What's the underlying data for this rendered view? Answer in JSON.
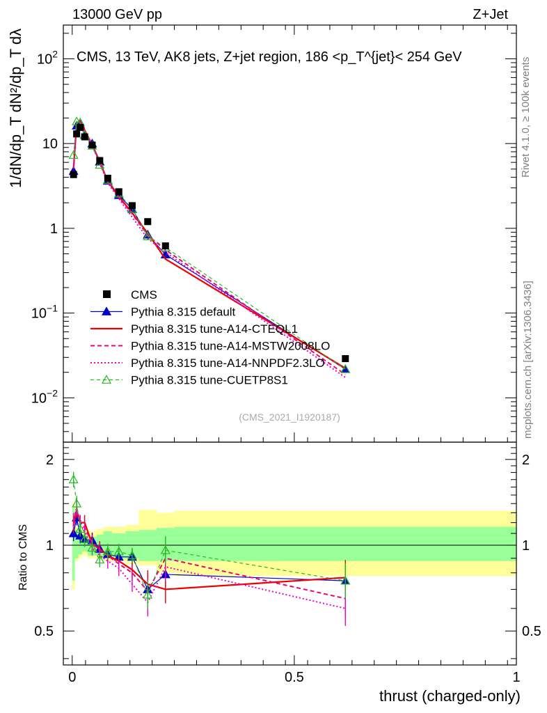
{
  "header": {
    "left": "13000 GeV pp",
    "right": "Z+Jet"
  },
  "side_labels": {
    "rivet": "Rivet 4.1.0, ≥ 100k events",
    "mcplots": "mcplots.cern.ch [arXiv:1306.3436]"
  },
  "chart_data": {
    "type": "line",
    "title": "CMS, 13 TeV, AK8 jets, Z+jet region, 186 <p_T^{jet}< 254 GeV",
    "analysis_tag": "(CMS_2021_I1920187)",
    "xlabel": "thrust (charged-only)",
    "ylabel_main": "1/dN/dp_T  dN²/dp_T dλ",
    "ylabel_ratio": "Ratio to CMS",
    "xlim": [
      -0.02,
      1.0
    ],
    "ylim_main": [
      0.003,
      250
    ],
    "ylim_ratio": [
      0.38,
      2.3
    ],
    "x_ticks": [
      "0",
      "0.5",
      "1"
    ],
    "y_ticks_main": [
      "10^-2",
      "10^-1",
      "1",
      "10",
      "10^2"
    ],
    "y_ticks_ratio": [
      "0.5",
      "1",
      "2"
    ],
    "data": {
      "name": "CMS",
      "x": [
        0.003,
        0.01,
        0.018,
        0.028,
        0.045,
        0.062,
        0.08,
        0.105,
        0.135,
        0.17,
        0.21,
        0.615
      ],
      "y": [
        4.3,
        13.0,
        15.5,
        12.0,
        9.6,
        6.3,
        3.9,
        2.7,
        1.85,
        1.2,
        0.62,
        0.029
      ]
    },
    "series": [
      {
        "name": "Pythia 8.315 default",
        "color": "#0000cc",
        "style": "solid-triangle",
        "ratio": [
          1.1,
          1.25,
          1.08,
          1.05,
          1.04,
          0.97,
          0.93,
          0.91,
          0.91,
          0.7,
          0.79,
          0.75
        ]
      },
      {
        "name": "Pythia 8.315 tune-A14-CTEQL1",
        "color": "#ee0000",
        "style": "solid-thick",
        "ratio": [
          1.17,
          1.33,
          1.2,
          1.2,
          1.01,
          0.97,
          0.92,
          0.88,
          0.82,
          0.73,
          0.7,
          0.77
        ]
      },
      {
        "name": "Pythia 8.315 tune-A14-MSTW2008LO",
        "color": "#ee0077",
        "style": "dashed",
        "ratio": [
          1.2,
          1.35,
          1.2,
          1.15,
          1.02,
          0.96,
          0.92,
          0.86,
          0.8,
          0.69,
          0.9,
          0.65
        ]
      },
      {
        "name": "Pythia 8.315 tune-A14-NNPDF2.3LO",
        "color": "#ee00cc",
        "style": "dotted",
        "ratio": [
          1.22,
          1.36,
          1.18,
          1.12,
          0.98,
          0.92,
          0.88,
          0.83,
          0.73,
          0.63,
          0.84,
          0.6
        ]
      },
      {
        "name": "Pythia 8.315 tune-CUETP8S1",
        "color": "#22bb22",
        "style": "dashed-open-triangle",
        "ratio": [
          1.7,
          1.4,
          1.14,
          1.05,
          0.98,
          0.89,
          0.95,
          0.95,
          0.92,
          0.67,
          0.96,
          0.75
        ]
      }
    ],
    "uncertainty_bands": {
      "edges": [
        0.0,
        0.006,
        0.014,
        0.022,
        0.035,
        0.055,
        0.07,
        0.09,
        0.12,
        0.15,
        0.19,
        0.23,
        1.0
      ],
      "inner": [
        [
          0.75,
          1.35
        ],
        [
          0.9,
          1.13
        ],
        [
          0.93,
          1.1
        ],
        [
          0.95,
          1.08
        ],
        [
          0.92,
          1.07
        ],
        [
          0.92,
          1.09
        ],
        [
          0.9,
          1.12
        ],
        [
          0.9,
          1.1
        ],
        [
          0.9,
          1.12
        ],
        [
          0.88,
          1.13
        ],
        [
          0.88,
          1.15
        ],
        [
          0.88,
          1.16
        ]
      ],
      "outer": [
        [
          0.7,
          1.4
        ],
        [
          0.88,
          1.16
        ],
        [
          0.9,
          1.14
        ],
        [
          0.92,
          1.12
        ],
        [
          0.9,
          1.12
        ],
        [
          0.9,
          1.14
        ],
        [
          0.88,
          1.16
        ],
        [
          0.88,
          1.16
        ],
        [
          0.86,
          1.18
        ],
        [
          0.85,
          1.33
        ],
        [
          0.8,
          1.3
        ],
        [
          0.78,
          1.32
        ]
      ]
    }
  }
}
